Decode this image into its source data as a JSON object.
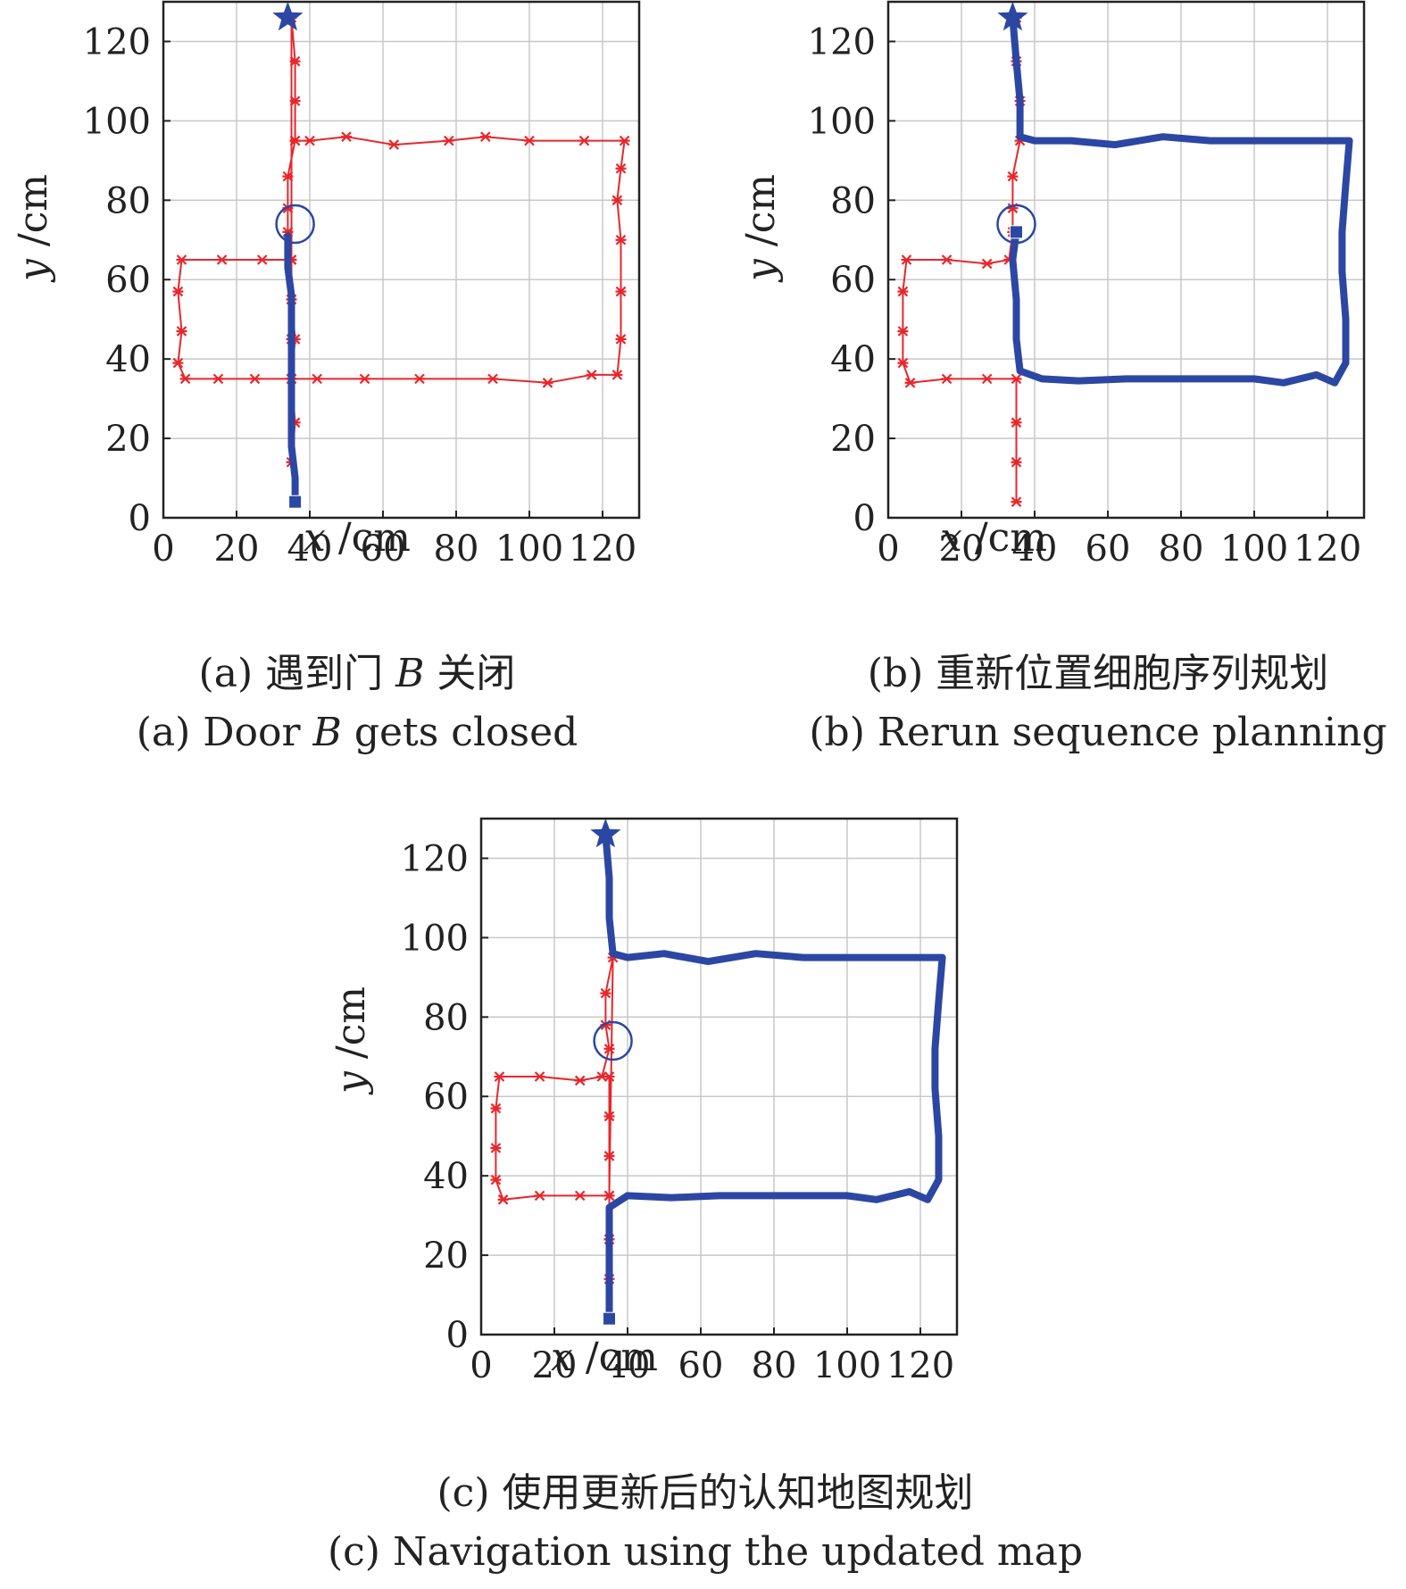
{
  "axes": {
    "xlabel_var": "x",
    "xlabel_unit": "/cm",
    "ylabel_var": "y",
    "ylabel_unit": "/cm",
    "x_ticks": [
      "0",
      "20",
      "40",
      "60",
      "80",
      "100",
      "120"
    ],
    "y_ticks": [
      "0",
      "20",
      "40",
      "60",
      "80",
      "100",
      "120"
    ]
  },
  "colors": {
    "planned": "#e8262b",
    "actual": "#2c47a3",
    "grid": "#c8c8c8"
  },
  "captions": {
    "a": {
      "zh_pre": "(a) 遇到门 ",
      "zh_var": "B",
      "zh_post": " 关闭",
      "en_pre": "(a) Door ",
      "en_var": "B",
      "en_post": " gets closed"
    },
    "b": {
      "zh": "(b) 重新位置细胞序列规划",
      "en": "(b) Rerun sequence planning"
    },
    "c": {
      "zh": "(c) 使用更新后的认知地图规划",
      "en": "(c) Navigation using the updated map"
    }
  },
  "chart_data": [
    {
      "id": "a",
      "type": "line",
      "xlim": [
        0,
        130
      ],
      "ylim": [
        0,
        130
      ],
      "grid": true,
      "markers": {
        "goal_star": [
          34,
          126
        ],
        "start_square": [
          36,
          4
        ],
        "door_circle": [
          36,
          74
        ]
      },
      "series": [
        {
          "role": "planned",
          "points": [
            [
              36,
              4
            ],
            [
              35,
              14
            ],
            [
              36,
              24
            ],
            [
              35,
              35
            ],
            [
              36,
              45
            ],
            [
              35,
              55
            ],
            [
              35,
              65
            ],
            [
              27,
              65
            ],
            [
              16,
              65
            ],
            [
              5,
              65
            ],
            [
              4,
              57
            ],
            [
              5,
              47
            ],
            [
              4,
              39
            ],
            [
              6,
              35
            ],
            [
              15,
              35
            ],
            [
              25,
              35
            ],
            [
              35,
              35
            ],
            [
              42,
              35
            ],
            [
              55,
              35
            ],
            [
              70,
              35
            ],
            [
              90,
              35
            ],
            [
              105,
              34
            ],
            [
              117,
              36
            ],
            [
              124,
              36
            ],
            [
              125,
              45
            ],
            [
              125,
              57
            ],
            [
              125,
              70
            ],
            [
              124,
              80
            ],
            [
              125,
              88
            ],
            [
              126,
              95
            ],
            [
              115,
              95
            ],
            [
              100,
              95
            ],
            [
              88,
              96
            ],
            [
              78,
              95
            ],
            [
              63,
              94
            ],
            [
              50,
              96
            ],
            [
              40,
              95
            ],
            [
              36,
              95
            ],
            [
              36,
              105
            ],
            [
              36,
              115
            ],
            [
              35,
              126
            ],
            [
              35,
              35
            ],
            [
              35,
              45
            ],
            [
              35,
              55
            ],
            [
              35,
              65
            ],
            [
              34,
              72
            ],
            [
              34,
              78
            ],
            [
              34,
              86
            ],
            [
              36,
              95
            ]
          ]
        },
        {
          "role": "actual",
          "points": [
            [
              36,
              4
            ],
            [
              36,
              10
            ],
            [
              35,
              18
            ],
            [
              35,
              26
            ],
            [
              35,
              34
            ],
            [
              35,
              40
            ],
            [
              35,
              48
            ],
            [
              35,
              56
            ],
            [
              34,
              63
            ],
            [
              34,
              71
            ]
          ]
        }
      ]
    },
    {
      "id": "b",
      "type": "line",
      "xlim": [
        0,
        130
      ],
      "ylim": [
        0,
        130
      ],
      "grid": true,
      "markers": {
        "goal_star": [
          34,
          126
        ],
        "start_square": [
          35,
          72
        ],
        "door_circle": [
          35,
          74
        ]
      },
      "series": [
        {
          "role": "planned",
          "points": [
            [
              35,
              4
            ],
            [
              35,
              14
            ],
            [
              35,
              24
            ],
            [
              35,
              35
            ],
            [
              27,
              35
            ],
            [
              16,
              35
            ],
            [
              6,
              34
            ],
            [
              4,
              39
            ],
            [
              4,
              47
            ],
            [
              4,
              57
            ],
            [
              5,
              65
            ],
            [
              16,
              65
            ],
            [
              27,
              64
            ],
            [
              33,
              65
            ],
            [
              34,
              72
            ],
            [
              34,
              78
            ],
            [
              34,
              86
            ],
            [
              36,
              95
            ],
            [
              36,
              105
            ],
            [
              35,
              115
            ],
            [
              35,
              126
            ]
          ]
        },
        {
          "role": "actual",
          "points": [
            [
              35,
              72
            ],
            [
              34,
              65
            ],
            [
              35,
              55
            ],
            [
              35,
              45
            ],
            [
              36,
              37
            ],
            [
              42,
              35
            ],
            [
              52,
              34.5
            ],
            [
              65,
              35
            ],
            [
              76,
              35
            ],
            [
              88,
              35
            ],
            [
              100,
              35
            ],
            [
              108,
              34
            ],
            [
              117,
              36
            ],
            [
              122,
              34
            ],
            [
              125,
              39
            ],
            [
              125,
              50
            ],
            [
              124,
              62
            ],
            [
              124,
              72
            ],
            [
              125,
              84
            ],
            [
              126,
              95
            ],
            [
              115,
              95
            ],
            [
              100,
              95
            ],
            [
              88,
              95
            ],
            [
              75,
              96
            ],
            [
              62,
              94
            ],
            [
              50,
              95
            ],
            [
              40,
              95
            ],
            [
              36,
              96
            ],
            [
              36,
              105
            ],
            [
              35,
              115
            ],
            [
              34,
              126
            ]
          ]
        }
      ]
    },
    {
      "id": "c",
      "type": "line",
      "xlim": [
        0,
        130
      ],
      "ylim": [
        0,
        130
      ],
      "grid": true,
      "markers": {
        "goal_star": [
          34,
          126
        ],
        "start_square": [
          35,
          4
        ],
        "door_circle": [
          36,
          74
        ]
      },
      "series": [
        {
          "role": "planned",
          "points": [
            [
              35,
              4
            ],
            [
              35,
              14
            ],
            [
              35,
              24
            ],
            [
              35,
              35
            ],
            [
              27,
              35
            ],
            [
              16,
              35
            ],
            [
              6,
              34
            ],
            [
              4,
              39
            ],
            [
              4,
              47
            ],
            [
              4,
              57
            ],
            [
              5,
              65
            ],
            [
              16,
              65
            ],
            [
              27,
              64
            ],
            [
              33,
              65
            ],
            [
              35,
              72
            ],
            [
              34,
              78
            ],
            [
              34,
              86
            ],
            [
              36,
              95
            ],
            [
              35,
              35
            ],
            [
              35,
              45
            ],
            [
              35,
              55
            ],
            [
              35,
              65
            ]
          ]
        },
        {
          "role": "actual",
          "points": [
            [
              35,
              4
            ],
            [
              35,
              12
            ],
            [
              35,
              22
            ],
            [
              35,
              32
            ],
            [
              40,
              35
            ],
            [
              52,
              34.5
            ],
            [
              65,
              35
            ],
            [
              76,
              35
            ],
            [
              88,
              35
            ],
            [
              100,
              35
            ],
            [
              108,
              34
            ],
            [
              117,
              36
            ],
            [
              122,
              34
            ],
            [
              125,
              39
            ],
            [
              125,
              50
            ],
            [
              124,
              62
            ],
            [
              124,
              72
            ],
            [
              125,
              84
            ],
            [
              126,
              95
            ],
            [
              115,
              95
            ],
            [
              100,
              95
            ],
            [
              88,
              95
            ],
            [
              75,
              96
            ],
            [
              62,
              94
            ],
            [
              50,
              96
            ],
            [
              40,
              95
            ],
            [
              36,
              96
            ],
            [
              35,
              105
            ],
            [
              35,
              115
            ],
            [
              34,
              126
            ]
          ]
        }
      ]
    }
  ]
}
